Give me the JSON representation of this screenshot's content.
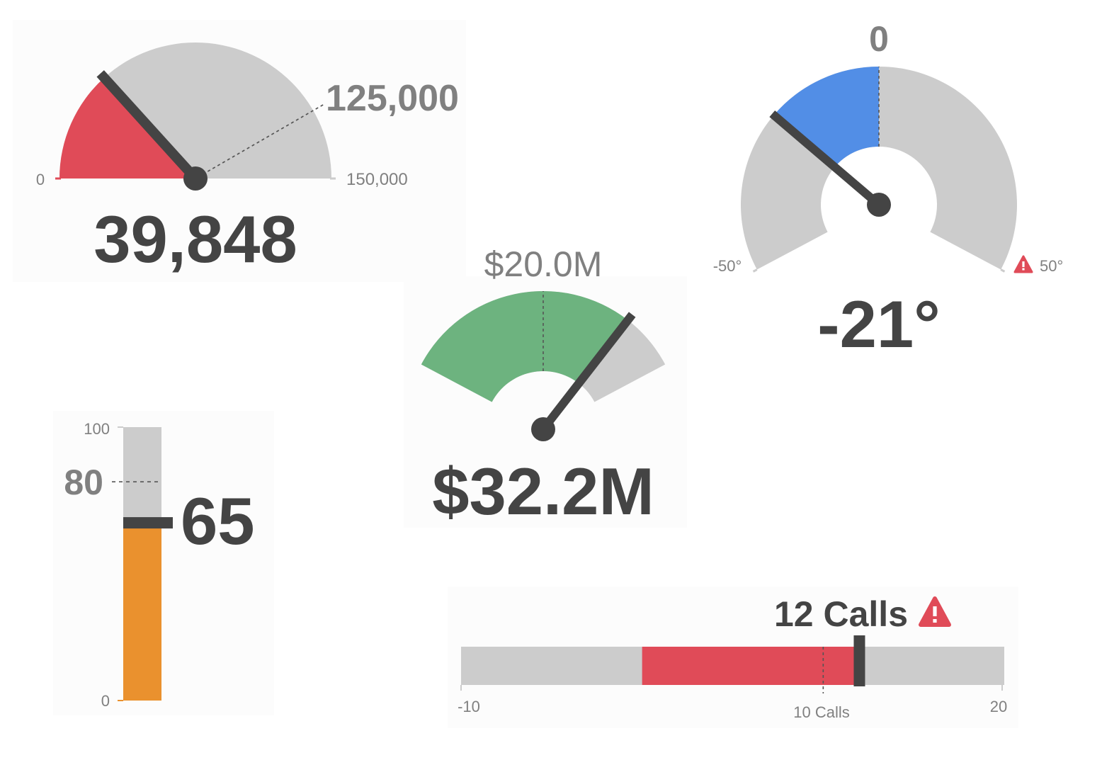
{
  "colors": {
    "track": "#cccccc",
    "needle": "#444444",
    "red": "#e04b58",
    "blue": "#528ee6",
    "green": "#6db37f",
    "orange": "#ea912e",
    "label": "#808080",
    "value": "#444444",
    "alert": "#e04b58"
  },
  "chart_data": [
    {
      "type": "gauge",
      "shape": "half-circle",
      "min": 0,
      "max": 150000,
      "value": 39848,
      "target": 125000,
      "labels": {
        "min": "0",
        "max": "150,000",
        "target": "125,000",
        "value": "39,848"
      }
    },
    {
      "type": "gauge",
      "shape": "arc-with-hole",
      "min": -50,
      "max": 50,
      "value": -21,
      "target": 0,
      "alert_on_max": true,
      "labels": {
        "min": "-50°",
        "max": "50°",
        "target": "0",
        "value": "-21°"
      }
    },
    {
      "type": "gauge",
      "shape": "arc-band",
      "min": 0,
      "max": 40,
      "value": 32.2,
      "target": 20,
      "labels": {
        "target": "$20.0M",
        "value": "$32.2M"
      }
    },
    {
      "type": "vertical-bullet",
      "min": 0,
      "max": 100,
      "value": 65,
      "target": 80,
      "labels": {
        "min": "0",
        "max": "100",
        "target": "80",
        "value": "65"
      }
    },
    {
      "type": "horizontal-bullet",
      "min": -10,
      "max": 20,
      "value": 12,
      "target": 10,
      "band_start": 0,
      "alert": true,
      "labels": {
        "min": "-10",
        "max": "20",
        "target": "10 Calls",
        "value": "12 Calls"
      }
    }
  ]
}
